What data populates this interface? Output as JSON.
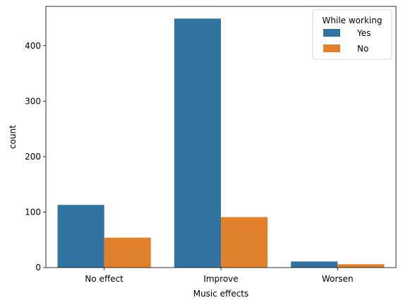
{
  "chart_data": {
    "type": "bar",
    "categories": [
      "No effect",
      "Improve",
      "Worsen"
    ],
    "series": [
      {
        "name": "Yes",
        "values": [
          113,
          449,
          11
        ],
        "color": "#3274a1"
      },
      {
        "name": "No",
        "values": [
          54,
          91,
          6
        ],
        "color": "#e1812c"
      }
    ],
    "title": "",
    "xlabel": "Music effects",
    "ylabel": "count",
    "ylim": [
      0,
      471
    ],
    "yticks": [
      0,
      100,
      200,
      300,
      400
    ],
    "legend": {
      "title": "While working",
      "placement": "top-right"
    },
    "grid": false
  }
}
